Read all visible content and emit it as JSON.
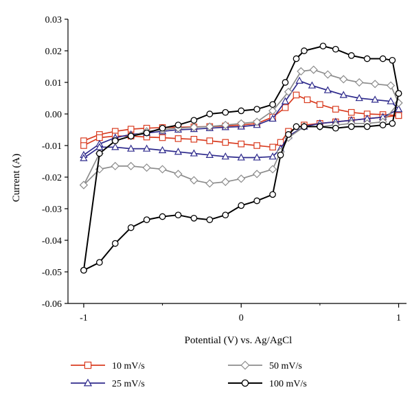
{
  "chart_data": {
    "type": "line",
    "title": "",
    "xlabel": "Potential (V) vs. Ag/AgCl",
    "ylabel": "Current (A)",
    "xlim": [
      -1.1,
      1.05
    ],
    "ylim": [
      -0.06,
      0.03
    ],
    "x_ticks": [
      -1,
      0,
      1
    ],
    "x_tick_labels": [
      "-1",
      "0",
      "1"
    ],
    "y_ticks": [
      0.03,
      0.02,
      0.01,
      0.0,
      -0.01,
      -0.02,
      -0.03,
      -0.04,
      -0.05,
      -0.06
    ],
    "y_tick_labels": [
      "0.03",
      "0.02",
      "0.01",
      "0.00",
      "-0.01",
      "-0.02",
      "-0.03",
      "-0.04",
      "-0.05",
      "-0.06"
    ],
    "grid": false,
    "legend_position": "bottom",
    "series": [
      {
        "name": "10 mV/s",
        "color": "#d93b1f",
        "marker": "square",
        "x": [
          -1.0,
          -0.9,
          -0.8,
          -0.7,
          -0.6,
          -0.5,
          -0.4,
          -0.3,
          -0.2,
          -0.1,
          0.0,
          0.1,
          0.2,
          0.28,
          0.35,
          0.42,
          0.5,
          0.6,
          0.7,
          0.8,
          0.9,
          1.0,
          1.0,
          0.9,
          0.8,
          0.7,
          0.6,
          0.5,
          0.4,
          0.3,
          0.25,
          0.2,
          0.1,
          0.0,
          -0.1,
          -0.2,
          -0.3,
          -0.4,
          -0.5,
          -0.6,
          -0.7,
          -0.8,
          -0.9,
          -1.0
        ],
        "y": [
          -0.0085,
          -0.0065,
          -0.0055,
          -0.0048,
          -0.0045,
          -0.0043,
          -0.0042,
          -0.0041,
          -0.004,
          -0.0038,
          -0.0035,
          -0.003,
          -0.001,
          0.002,
          0.006,
          0.0045,
          0.003,
          0.0015,
          0.0005,
          0.0,
          -0.0002,
          -0.0005,
          -0.0005,
          -0.001,
          -0.0015,
          -0.002,
          -0.0025,
          -0.003,
          -0.0035,
          -0.0055,
          -0.009,
          -0.0105,
          -0.01,
          -0.0095,
          -0.009,
          -0.0085,
          -0.008,
          -0.0078,
          -0.0075,
          -0.0073,
          -0.007,
          -0.007,
          -0.0075,
          -0.01
        ]
      },
      {
        "name": "25 mV/s",
        "color": "#2e2a8c",
        "marker": "triangle",
        "x": [
          -1.0,
          -0.9,
          -0.8,
          -0.7,
          -0.6,
          -0.5,
          -0.4,
          -0.3,
          -0.2,
          -0.1,
          0.0,
          0.1,
          0.2,
          0.28,
          0.37,
          0.45,
          0.55,
          0.65,
          0.75,
          0.85,
          0.95,
          1.0,
          1.0,
          0.9,
          0.8,
          0.7,
          0.6,
          0.5,
          0.4,
          0.3,
          0.25,
          0.2,
          0.1,
          0.0,
          -0.1,
          -0.2,
          -0.3,
          -0.4,
          -0.5,
          -0.6,
          -0.7,
          -0.8,
          -0.9,
          -1.0
        ],
        "y": [
          -0.013,
          -0.0095,
          -0.0075,
          -0.0065,
          -0.006,
          -0.0055,
          -0.005,
          -0.0048,
          -0.0045,
          -0.0042,
          -0.004,
          -0.0035,
          -0.0015,
          0.004,
          0.0105,
          0.009,
          0.0075,
          0.006,
          0.005,
          0.0045,
          0.004,
          0.0015,
          0.0015,
          -0.001,
          -0.0015,
          -0.002,
          -0.0025,
          -0.003,
          -0.004,
          -0.007,
          -0.011,
          -0.0135,
          -0.0138,
          -0.0138,
          -0.0135,
          -0.013,
          -0.0125,
          -0.012,
          -0.0115,
          -0.011,
          -0.011,
          -0.0105,
          -0.0105,
          -0.014
        ]
      },
      {
        "name": "50 mV/s",
        "color": "#8c8c8c",
        "marker": "diamond",
        "x": [
          -1.0,
          -0.9,
          -0.8,
          -0.7,
          -0.6,
          -0.5,
          -0.4,
          -0.3,
          -0.2,
          -0.1,
          0.0,
          0.1,
          0.2,
          0.3,
          0.38,
          0.46,
          0.55,
          0.65,
          0.75,
          0.85,
          0.95,
          1.0,
          1.0,
          0.9,
          0.8,
          0.7,
          0.6,
          0.5,
          0.4,
          0.3,
          0.25,
          0.2,
          0.1,
          0.0,
          -0.1,
          -0.2,
          -0.3,
          -0.4,
          -0.5,
          -0.6,
          -0.7,
          -0.8,
          -0.9,
          -1.0
        ],
        "y": [
          -0.0225,
          -0.0125,
          -0.0085,
          -0.007,
          -0.0055,
          -0.005,
          -0.0045,
          -0.0042,
          -0.004,
          -0.0035,
          -0.003,
          -0.0025,
          0.001,
          0.007,
          0.0135,
          0.014,
          0.0125,
          0.011,
          0.01,
          0.0095,
          0.009,
          0.0035,
          0.0035,
          -0.0025,
          -0.003,
          -0.003,
          -0.0035,
          -0.004,
          -0.004,
          -0.0075,
          -0.012,
          -0.0175,
          -0.019,
          -0.0205,
          -0.0215,
          -0.022,
          -0.021,
          -0.019,
          -0.0175,
          -0.017,
          -0.0165,
          -0.0165,
          -0.0175,
          -0.0225
        ]
      },
      {
        "name": "100 mV/s",
        "color": "#000000",
        "marker": "circle",
        "x": [
          -1.0,
          -0.9,
          -0.8,
          -0.7,
          -0.6,
          -0.5,
          -0.4,
          -0.3,
          -0.2,
          -0.1,
          0.0,
          0.1,
          0.2,
          0.28,
          0.35,
          0.4,
          0.52,
          0.6,
          0.7,
          0.8,
          0.9,
          0.96,
          1.0,
          1.0,
          0.96,
          0.9,
          0.8,
          0.7,
          0.6,
          0.5,
          0.4,
          0.35,
          0.3,
          0.25,
          0.2,
          0.1,
          0.0,
          -0.1,
          -0.2,
          -0.3,
          -0.4,
          -0.5,
          -0.6,
          -0.7,
          -0.8,
          -0.9,
          -1.0
        ],
        "y": [
          -0.0495,
          -0.0125,
          -0.0085,
          -0.007,
          -0.006,
          -0.0045,
          -0.0035,
          -0.002,
          0.0,
          0.0005,
          0.001,
          0.0015,
          0.003,
          0.01,
          0.0175,
          0.02,
          0.0215,
          0.0205,
          0.0185,
          0.0175,
          0.0175,
          0.017,
          0.0065,
          0.0065,
          -0.003,
          -0.0035,
          -0.004,
          -0.004,
          -0.0045,
          -0.004,
          -0.004,
          -0.004,
          -0.0065,
          -0.013,
          -0.0255,
          -0.0275,
          -0.029,
          -0.032,
          -0.0335,
          -0.033,
          -0.032,
          -0.0325,
          -0.0335,
          -0.036,
          -0.041,
          -0.047,
          -0.0495
        ]
      }
    ]
  }
}
